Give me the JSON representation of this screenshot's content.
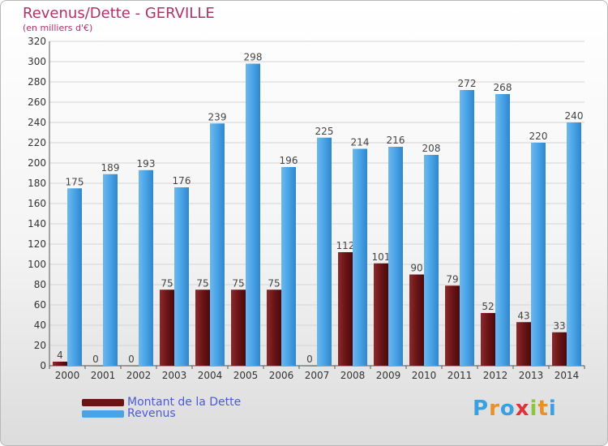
{
  "title": "Revenus/Dette - GERVILLE",
  "subtitle": "(en milliers d'€)",
  "logo": "Proxiti",
  "colors": {
    "debt": "#6b1416",
    "revenue": "#4aa3e6",
    "title": "#b0306a",
    "legend_text": "#4a5ad8"
  },
  "chart_data": {
    "type": "bar",
    "title": "Revenus/Dette - GERVILLE",
    "ylabel": "(en milliers d'€)",
    "xlabel": "",
    "ylim": [
      0,
      320
    ],
    "yticks": [
      0,
      20,
      40,
      60,
      80,
      100,
      120,
      140,
      160,
      180,
      200,
      220,
      240,
      260,
      280,
      300,
      320
    ],
    "categories": [
      "2000",
      "2001",
      "2002",
      "2003",
      "2004",
      "2005",
      "2006",
      "2007",
      "2008",
      "2009",
      "2010",
      "2011",
      "2012",
      "2013",
      "2014"
    ],
    "series": [
      {
        "name": "Montant de la Dette",
        "values": [
          4,
          0,
          0,
          75,
          75,
          75,
          75,
          0,
          112,
          101,
          90,
          79,
          52,
          43,
          33
        ]
      },
      {
        "name": "Revenus",
        "values": [
          175,
          189,
          193,
          176,
          239,
          298,
          196,
          225,
          214,
          216,
          208,
          272,
          268,
          220,
          240
        ]
      }
    ],
    "grid": true,
    "legend": "bottom-left"
  }
}
